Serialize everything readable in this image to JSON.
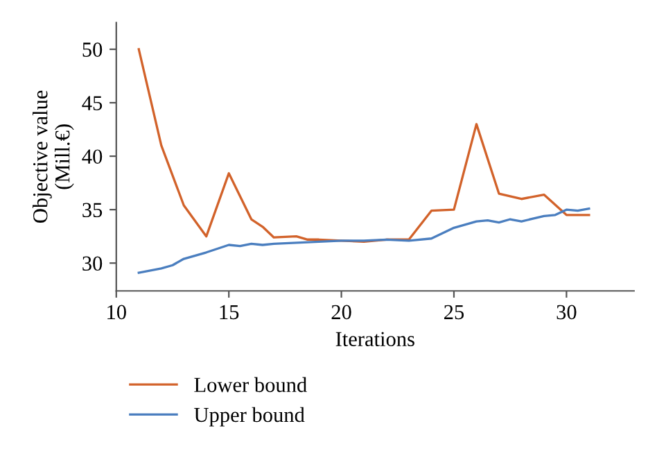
{
  "chart_data": {
    "type": "line",
    "xlabel": "Iterations",
    "ylabel": "Objective value\n(Mill.€)",
    "xlim": [
      10,
      33
    ],
    "ylim": [
      27.4,
      52.5
    ],
    "xticks": [
      10,
      15,
      20,
      25,
      30
    ],
    "yticks": [
      30,
      35,
      40,
      45,
      50
    ],
    "grid": false,
    "legend": "bottom",
    "marker": "none",
    "line_style": "solid",
    "series": [
      {
        "name": "Lower bound",
        "color": "#d2622a",
        "x": [
          11,
          12,
          13,
          14,
          15,
          16,
          16.5,
          17,
          18,
          18.5,
          19,
          20,
          21,
          22,
          23,
          24,
          25,
          26,
          27,
          28,
          29,
          30,
          31
        ],
        "values": [
          50,
          41,
          35.4,
          32.5,
          38.4,
          34.1,
          33.4,
          32.4,
          32.5,
          32.2,
          32.2,
          32.1,
          32.0,
          32.2,
          32.2,
          34.9,
          35.0,
          43.0,
          36.5,
          36.0,
          36.4,
          34.5,
          34.5
        ]
      },
      {
        "name": "Upper bound",
        "color": "#4a7ebf",
        "x": [
          11,
          12,
          12.5,
          13,
          14,
          15,
          15.5,
          16,
          16.5,
          17,
          18,
          19,
          20,
          21,
          22,
          23,
          24,
          25,
          26,
          26.5,
          27,
          27.5,
          28,
          29,
          29.5,
          30,
          30.5,
          31
        ],
        "values": [
          29.1,
          29.5,
          29.8,
          30.4,
          31.0,
          31.7,
          31.6,
          31.8,
          31.7,
          31.8,
          31.9,
          32.0,
          32.1,
          32.1,
          32.2,
          32.1,
          32.3,
          33.3,
          33.9,
          34.0,
          33.8,
          34.1,
          33.9,
          34.4,
          34.5,
          35.0,
          34.9,
          35.1
        ]
      }
    ]
  }
}
